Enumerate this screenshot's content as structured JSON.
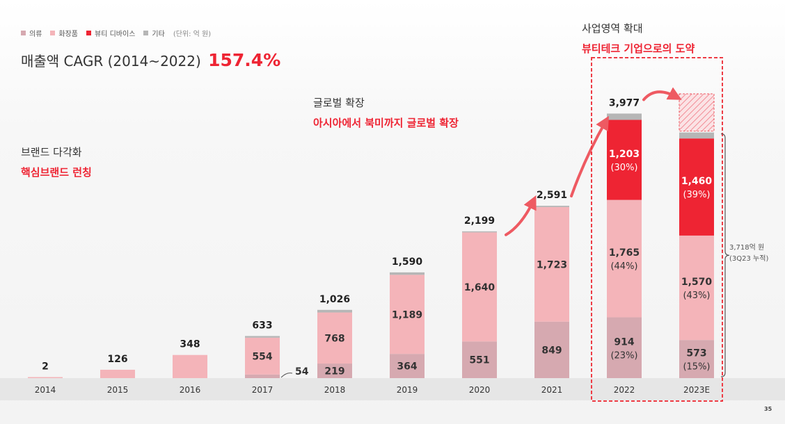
{
  "legend": {
    "items": [
      {
        "label": "의류",
        "color": "#d6a9b0"
      },
      {
        "label": "화장품",
        "color": "#f4b4b9"
      },
      {
        "label": "뷰티 디바이스",
        "color": "#ee2433"
      },
      {
        "label": "기타",
        "color": "#b6b6b6"
      }
    ],
    "unit": "(단위: 억 원)"
  },
  "cagr": {
    "label": "매출액 CAGR (2014~2022)",
    "value": "157.4%"
  },
  "annotations": {
    "brand": {
      "heading": "브랜드 다각화",
      "sub": "핵심브랜드 런칭"
    },
    "global": {
      "heading": "글로벌 확장",
      "sub": "아시아에서 북미까지 글로벌 확장"
    },
    "business": {
      "heading": "사업영역 확대",
      "sub": "뷰티테크 기업으로의 도약"
    }
  },
  "bracket_note": {
    "line1": "3,718억 원",
    "line2": "(3Q23 누적)"
  },
  "page_number": "35",
  "chart_data": {
    "type": "bar",
    "stacked": true,
    "categories": [
      "2014",
      "2015",
      "2016",
      "2017",
      "2018",
      "2019",
      "2020",
      "2021",
      "2022",
      "2023E"
    ],
    "totals": [
      "2",
      "126",
      "348",
      "633",
      "1,026",
      "1,590",
      "2,199",
      "2,591",
      "3,977",
      ""
    ],
    "series": [
      {
        "name": "의류",
        "color": "#d6a9b0",
        "values": [
          0,
          0,
          0,
          54,
          219,
          364,
          551,
          849,
          914,
          573
        ],
        "labels": [
          "",
          "",
          "",
          "54",
          "219",
          "364",
          "551",
          "849",
          "914",
          "573"
        ],
        "pct": [
          "",
          "",
          "",
          "",
          "",
          "",
          "",
          "",
          "(23%)",
          "(15%)"
        ]
      },
      {
        "name": "화장품",
        "color": "#f4b4b9",
        "values": [
          2,
          126,
          348,
          554,
          768,
          1189,
          1640,
          1723,
          1765,
          1570
        ],
        "labels": [
          "",
          "",
          "",
          "554",
          "768",
          "1,189",
          "1,640",
          "1,723",
          "1,765",
          "1,570"
        ],
        "pct": [
          "",
          "",
          "",
          "",
          "",
          "",
          "",
          "",
          "(44%)",
          "(43%)"
        ]
      },
      {
        "name": "뷰티 디바이스",
        "color": "#ee2433",
        "values": [
          0,
          0,
          0,
          0,
          0,
          0,
          0,
          0,
          1203,
          1460
        ],
        "labels": [
          "",
          "",
          "",
          "",
          "",
          "",
          "",
          "",
          "1,203",
          "1,460"
        ],
        "pct": [
          "",
          "",
          "",
          "",
          "",
          "",
          "",
          "",
          "(30%)",
          "(39%)"
        ]
      },
      {
        "name": "기타",
        "color": "#b6b6b6",
        "values": [
          0,
          0,
          0,
          25,
          39,
          37,
          8,
          19,
          95,
          90
        ],
        "labels": [
          "",
          "",
          "",
          "",
          "",
          "",
          "",
          "",
          "",
          ""
        ],
        "pct": [
          "",
          "",
          "",
          "",
          "",
          "",
          "",
          "",
          "",
          ""
        ]
      }
    ],
    "forecast_category": "2023E",
    "forecast_extra": 560,
    "ylim": [
      0,
      4500
    ],
    "xlabel": "",
    "ylabel": ""
  }
}
